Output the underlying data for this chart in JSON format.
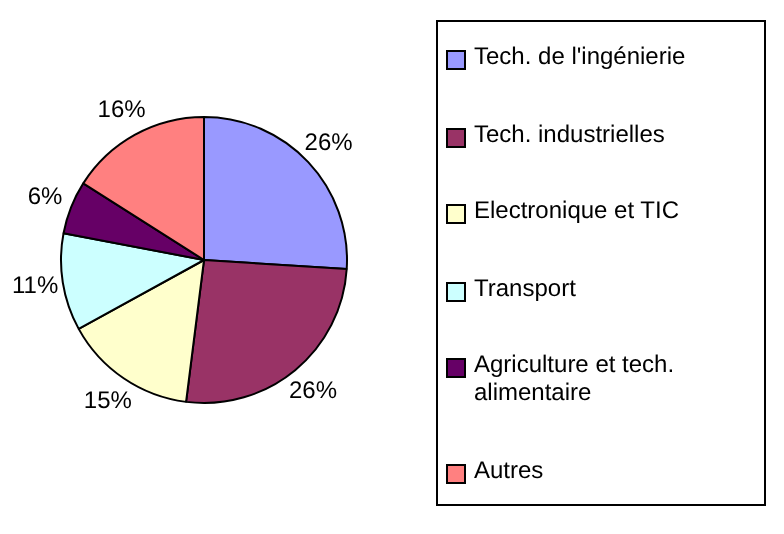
{
  "chart_data": {
    "type": "pie",
    "categories": [
      "Tech. de l'ingénierie",
      "Tech. industrielles",
      "Electronique et TIC",
      "Transport",
      "Agriculture et tech. alimentaire",
      "Autres"
    ],
    "values": [
      26,
      26,
      15,
      11,
      6,
      16
    ],
    "colors": [
      "#9999ff",
      "#993366",
      "#ffffcc",
      "#ccffff",
      "#660066",
      "#ff8080"
    ],
    "value_labels": [
      "26%",
      "26%",
      "15%",
      "11%",
      "6%",
      "16%"
    ],
    "legend": "right"
  }
}
